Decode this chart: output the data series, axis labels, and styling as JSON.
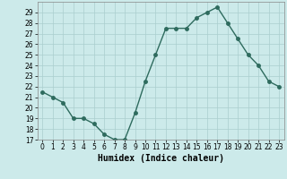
{
  "x": [
    0,
    1,
    2,
    3,
    4,
    5,
    6,
    7,
    8,
    9,
    10,
    11,
    12,
    13,
    14,
    15,
    16,
    17,
    18,
    19,
    20,
    21,
    22,
    23
  ],
  "y": [
    21.5,
    21.0,
    20.5,
    19.0,
    19.0,
    18.5,
    17.5,
    17.0,
    17.0,
    19.5,
    22.5,
    25.0,
    27.5,
    27.5,
    27.5,
    28.5,
    29.0,
    29.5,
    28.0,
    26.5,
    25.0,
    24.0,
    22.5,
    22.0
  ],
  "xlabel": "Humidex (Indice chaleur)",
  "ylim": [
    17,
    30
  ],
  "xlim": [
    -0.5,
    23.5
  ],
  "yticks": [
    17,
    18,
    19,
    20,
    21,
    22,
    23,
    24,
    25,
    26,
    27,
    28,
    29
  ],
  "xticks": [
    0,
    1,
    2,
    3,
    4,
    5,
    6,
    7,
    8,
    9,
    10,
    11,
    12,
    13,
    14,
    15,
    16,
    17,
    18,
    19,
    20,
    21,
    22,
    23
  ],
  "line_color": "#2e6b5e",
  "marker_color": "#2e6b5e",
  "bg_color": "#cceaea",
  "grid_color": "#aacece",
  "tick_fontsize": 5.5,
  "xlabel_fontsize": 7,
  "line_width": 1.0,
  "marker_size": 2.5
}
